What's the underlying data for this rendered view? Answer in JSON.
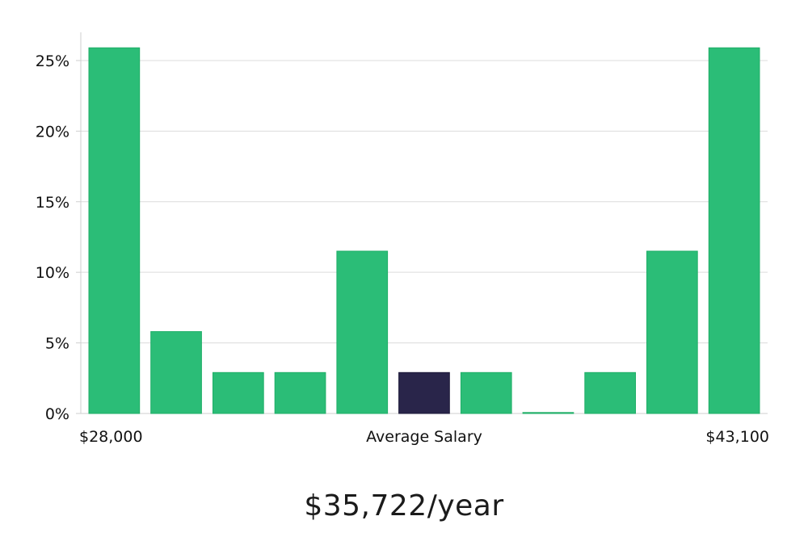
{
  "chart_data": {
    "type": "bar",
    "title": "",
    "xlabel": "Average Salary",
    "ylabel": "",
    "x_min_label": "$28,000",
    "x_max_label": "$43,100",
    "ylim": [
      0,
      27
    ],
    "yticks": [
      0,
      5,
      10,
      15,
      20,
      25
    ],
    "ytick_labels": [
      "0%",
      "5%",
      "10%",
      "15%",
      "20%",
      "25%"
    ],
    "grid": true,
    "values": [
      25.9,
      5.8,
      2.9,
      2.9,
      11.5,
      2.9,
      2.9,
      0.0,
      2.9,
      11.5,
      25.9
    ],
    "highlight_index": 5,
    "colors": {
      "bar": "#2bbd77",
      "bar_edge": "#1fae67",
      "highlight": "#29254a",
      "grid": "#dcdcdc",
      "axis": "#cfcfcf",
      "text": "#111111"
    }
  },
  "salary": {
    "headline": "$35,722/year"
  }
}
